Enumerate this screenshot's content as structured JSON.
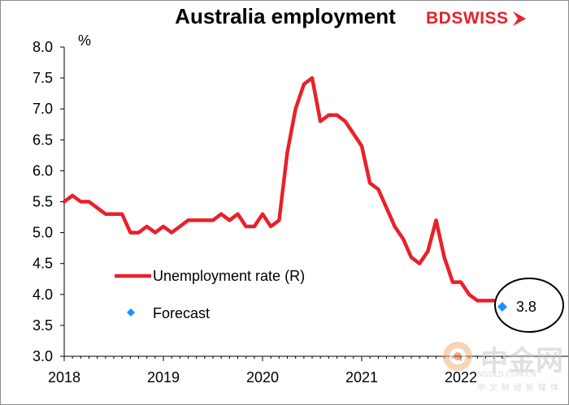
{
  "header": {
    "title": "Australia employment",
    "brand_part1": "BD",
    "brand_part2": "SWISS"
  },
  "watermark": {
    "name": "中金网",
    "domain": "NGOLD.COM.CN",
    "subtitle": "中文财经新媒体"
  },
  "colors": {
    "line": "#e8212a",
    "forecast": "#1e90ff",
    "brand": "#e8212a"
  },
  "chart_data": {
    "type": "line",
    "title": "Australia employment",
    "ylabel": "%",
    "ylim": [
      3.0,
      8.0
    ],
    "xlim": [
      2018.0,
      2023.0
    ],
    "y_ticks": [
      "8.0",
      "7.5",
      "7.0",
      "6.5",
      "6.0",
      "5.5",
      "5.0",
      "4.5",
      "4.0",
      "3.5",
      "3.0"
    ],
    "x_ticks": [
      "2018",
      "2019",
      "2020",
      "2021",
      "2022"
    ],
    "legend": {
      "placement": "bottom-left",
      "items": [
        "Unemployment rate (R)",
        "Forecast"
      ]
    },
    "series": [
      {
        "name": "Unemployment rate (R)",
        "color": "#e8212a",
        "x": [
          2018.0,
          2018.083,
          2018.167,
          2018.25,
          2018.333,
          2018.417,
          2018.5,
          2018.583,
          2018.667,
          2018.75,
          2018.833,
          2018.917,
          2019.0,
          2019.083,
          2019.167,
          2019.25,
          2019.333,
          2019.417,
          2019.5,
          2019.583,
          2019.667,
          2019.75,
          2019.833,
          2019.917,
          2020.0,
          2020.083,
          2020.167,
          2020.25,
          2020.333,
          2020.417,
          2020.5,
          2020.583,
          2020.667,
          2020.75,
          2020.833,
          2020.917,
          2021.0,
          2021.083,
          2021.167,
          2021.25,
          2021.333,
          2021.417,
          2021.5,
          2021.583,
          2021.667,
          2021.75,
          2021.833,
          2021.917,
          2022.0,
          2022.083,
          2022.167,
          2022.25,
          2022.333
        ],
        "values": [
          5.5,
          5.6,
          5.5,
          5.5,
          5.4,
          5.3,
          5.3,
          5.3,
          5.0,
          5.0,
          5.1,
          5.0,
          5.1,
          5.0,
          5.1,
          5.2,
          5.2,
          5.2,
          5.2,
          5.3,
          5.2,
          5.3,
          5.1,
          5.1,
          5.3,
          5.1,
          5.2,
          6.3,
          7.0,
          7.4,
          7.5,
          6.8,
          6.9,
          6.9,
          6.8,
          6.6,
          6.4,
          5.8,
          5.7,
          5.4,
          5.1,
          4.9,
          4.6,
          4.5,
          4.7,
          5.2,
          4.6,
          4.2,
          4.2,
          4.0,
          3.9,
          3.9,
          3.9
        ]
      },
      {
        "name": "Forecast",
        "color": "#1e90ff",
        "x": [
          2022.417
        ],
        "values": [
          3.8
        ]
      }
    ],
    "annotations": [
      {
        "text": "3.8",
        "target": "Forecast"
      }
    ]
  }
}
